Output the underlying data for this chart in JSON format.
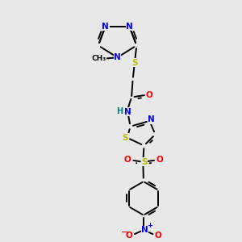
{
  "bg_color": "#e8e8e8",
  "atom_colors": {
    "N": "#0000ff",
    "O": "#ff0000",
    "S": "#bbbb00",
    "C": "#000000",
    "H": "#008080"
  },
  "bond_color": "#000000",
  "bond_width": 1.4
}
